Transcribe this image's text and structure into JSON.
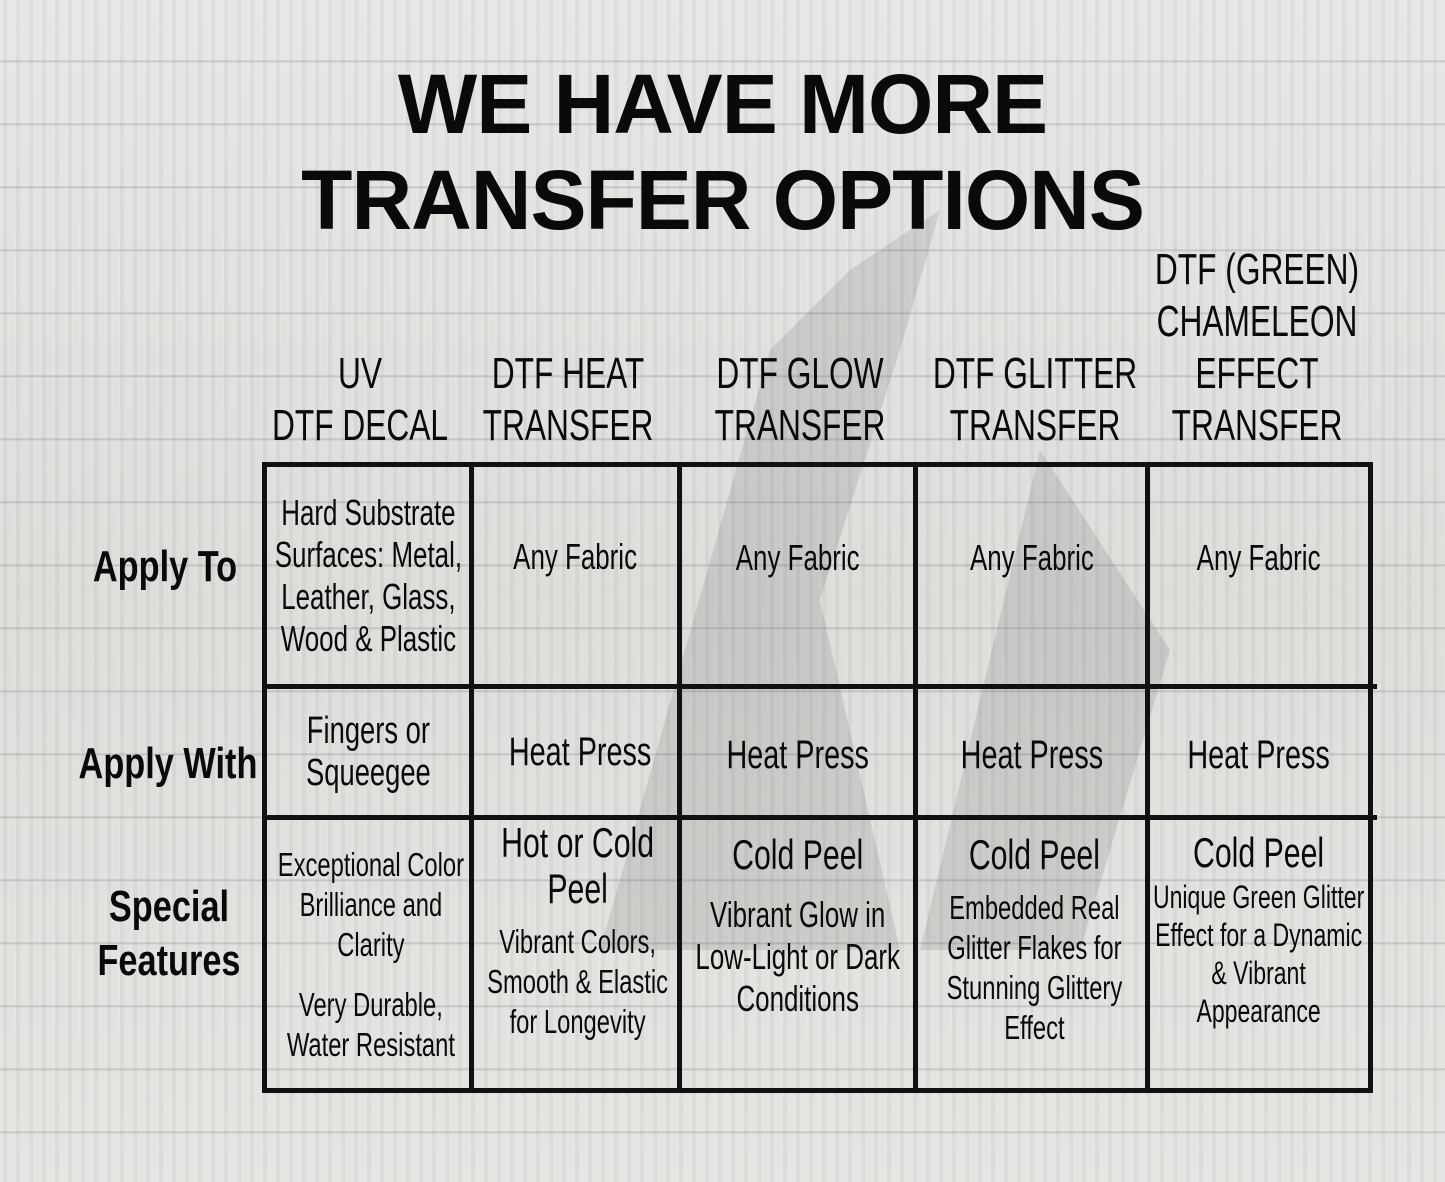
{
  "title": {
    "line1": "WE HAVE MORE",
    "line2": "TRANSFER OPTIONS"
  },
  "columns": [
    {
      "label": [
        "UV",
        "DTF DECAL"
      ]
    },
    {
      "label": [
        "DTF HEAT",
        "TRANSFER"
      ]
    },
    {
      "label": [
        "DTF GLOW",
        "TRANSFER"
      ]
    },
    {
      "label": [
        "DTF GLITTER",
        "TRANSFER"
      ]
    },
    {
      "label": [
        "DTF  (GREEN)",
        "CHAMELEON",
        "EFFECT",
        "TRANSFER"
      ]
    }
  ],
  "rows": [
    {
      "label": [
        "Apply To"
      ]
    },
    {
      "label": [
        "Apply With"
      ]
    },
    {
      "label": [
        "Special",
        "Features"
      ]
    }
  ],
  "cells": {
    "apply_to": [
      "Hard Substrate Surfaces: Metal, Leather, Glass, Wood & Plastic",
      "Any Fabric",
      "Any Fabric",
      "Any Fabric",
      "Any Fabric"
    ],
    "apply_with": [
      "Fingers or Squeegee",
      "Heat Press",
      "Heat Press",
      "Heat Press",
      "Heat Press"
    ],
    "special": [
      {
        "heading": "",
        "lines": [
          "Exceptional Color Brilliance and Clarity",
          "Very Durable, Water Resistant"
        ]
      },
      {
        "heading": "Hot or Cold Peel",
        "lines": [
          "Vibrant Colors, Smooth & Elastic for Longevity"
        ]
      },
      {
        "heading": "Cold Peel",
        "lines": [
          "Vibrant Glow in Low-Light or Dark Conditions"
        ]
      },
      {
        "heading": "Cold Peel",
        "lines": [
          "Embedded Real Glitter Flakes for Stunning Glittery Effect"
        ]
      },
      {
        "heading": "Cold Peel",
        "lines": [
          "Unique Green Glitter Effect for a Dynamic & Vibrant Appearance"
        ]
      }
    ]
  }
}
